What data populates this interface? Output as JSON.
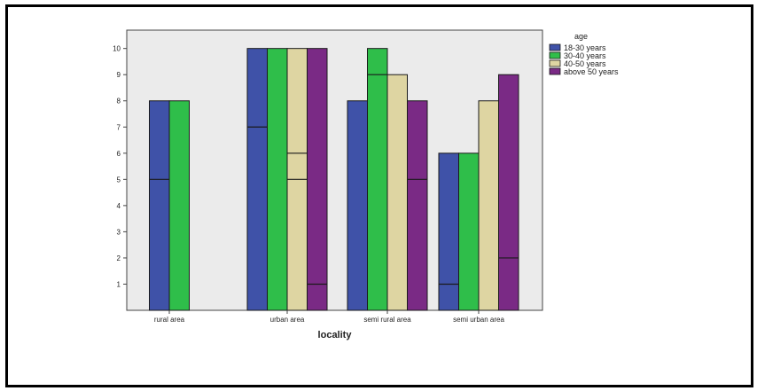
{
  "chart_data": {
    "type": "bar",
    "title": "",
    "xlabel": "locality",
    "ylabel": "",
    "categories": [
      "rural area",
      "urban area",
      "semi rural area",
      "semi urban area"
    ],
    "y_ticks": [
      1,
      2,
      3,
      4,
      5,
      6,
      7,
      8,
      9,
      10
    ],
    "ylim": [
      0,
      10.7
    ],
    "legend": {
      "title": "age",
      "placement": "top-right, outside plot"
    },
    "series": [
      {
        "name": "18-30 years",
        "color": "#3f52a8",
        "values": [
          8,
          10,
          8,
          6
        ],
        "lines": [
          5,
          7,
          null,
          1
        ]
      },
      {
        "name": "30-40 years",
        "color": "#2fbe4a",
        "values": [
          8,
          10,
          10,
          6
        ],
        "lines": [
          null,
          null,
          9,
          null
        ]
      },
      {
        "name": "40-50 years",
        "color": "#ded5a2",
        "values": [
          null,
          10,
          9,
          8
        ],
        "lines": [
          null,
          6,
          null,
          null
        ],
        "lines2": [
          null,
          5,
          null,
          null
        ]
      },
      {
        "name": "above 50 years",
        "color": "#7a2a85",
        "values": [
          null,
          10,
          8,
          9
        ],
        "lines": [
          null,
          1,
          5,
          2
        ]
      }
    ],
    "plot_background": "#ebebeb",
    "grid": false
  }
}
